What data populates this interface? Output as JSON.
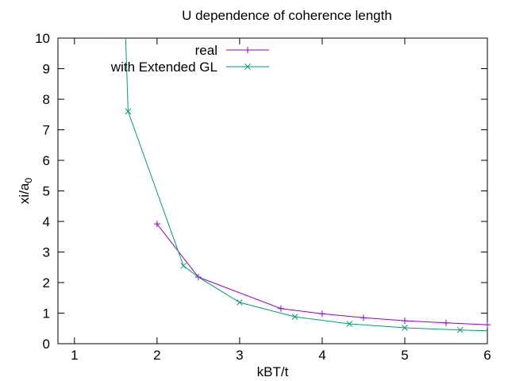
{
  "chart_data": {
    "type": "line",
    "title": "U dependence of coherence length",
    "xlabel": "kBT/t",
    "ylabel": {
      "main": "xi/a",
      "subscript": "0"
    },
    "xlim": [
      0.8,
      6
    ],
    "ylim": [
      0,
      10
    ],
    "xticks": [
      1,
      2,
      3,
      4,
      5,
      6
    ],
    "yticks": [
      0,
      1,
      2,
      3,
      4,
      5,
      6,
      7,
      8,
      9,
      10
    ],
    "grid": false,
    "legend": {
      "placement": "top-center"
    },
    "series": [
      {
        "name": "real",
        "color": "#9400d3",
        "marker": "plus",
        "x": [
          2.0,
          2.5,
          3.5,
          4.0,
          4.5,
          5.0,
          5.5,
          6.0
        ],
        "y": [
          3.92,
          2.18,
          1.15,
          0.98,
          0.85,
          0.75,
          0.68,
          0.62
        ]
      },
      {
        "name": "with Extended GL",
        "color": "#009e73",
        "marker": "cross",
        "x": [
          1.62,
          1.65,
          2.32,
          2.5,
          3.0,
          3.67,
          4.33,
          5.0,
          5.67,
          6.0
        ],
        "y": [
          10.0,
          7.6,
          2.55,
          2.18,
          1.35,
          0.88,
          0.65,
          0.52,
          0.45,
          0.42
        ],
        "marker_points": [
          1,
          2,
          4,
          5,
          6,
          7,
          8
        ]
      }
    ]
  }
}
